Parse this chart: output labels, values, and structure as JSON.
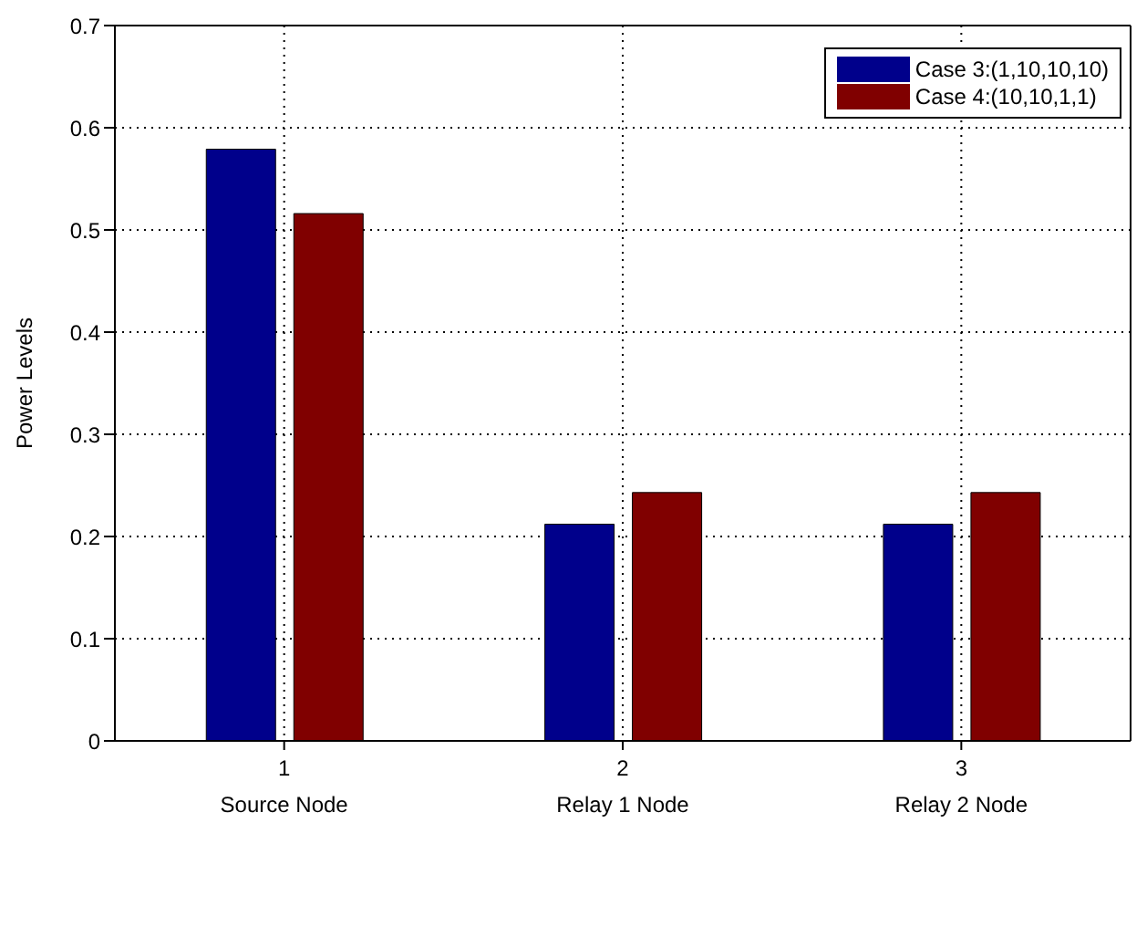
{
  "chart_data": {
    "type": "bar",
    "ylabel": "Power Levels",
    "categories": [
      "1\nSource Node",
      "2\nRelay 1 Node",
      "3\nRelay 2 Node"
    ],
    "series": [
      {
        "name": "Case 3:(1,10,10,10)",
        "color": "#00008b",
        "values": [
          0.579,
          0.212,
          0.212
        ]
      },
      {
        "name": "Case 4:(10,10,1,1)",
        "color": "#800000",
        "values": [
          0.516,
          0.243,
          0.243
        ]
      }
    ],
    "ylim": [
      0,
      0.7
    ],
    "yticks": [
      0,
      0.1,
      0.2,
      0.3,
      0.4,
      0.5,
      0.6,
      0.7
    ],
    "grid": true,
    "legend": "top right"
  }
}
